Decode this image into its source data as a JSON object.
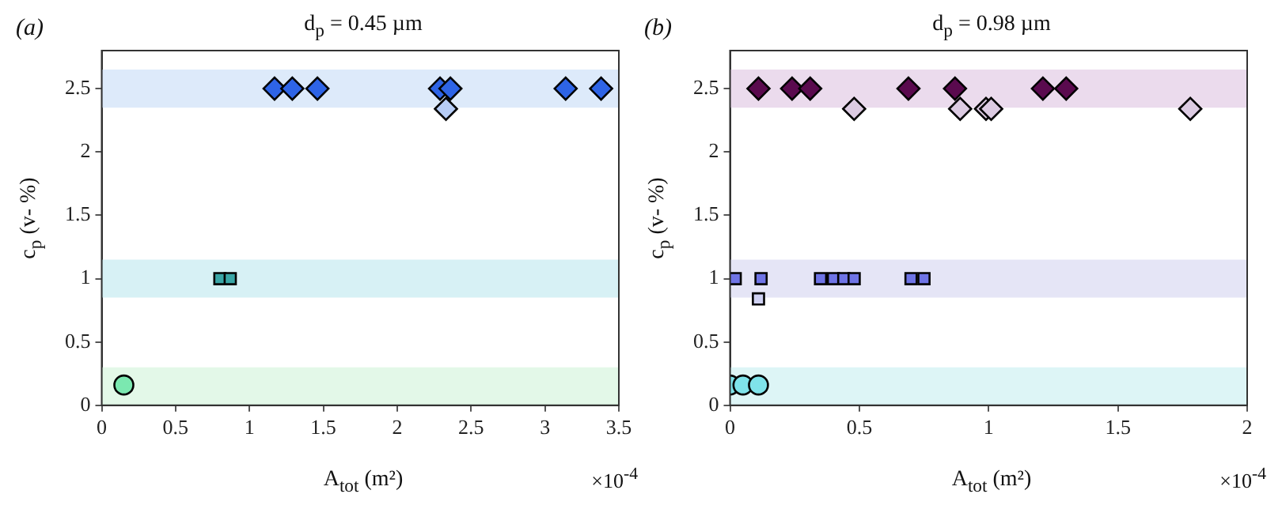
{
  "chart_data": [
    {
      "type": "scatter",
      "title": "d$_{p}$ = 0.45 µm",
      "xlabel": "A$_{tot}$ (m²)",
      "ylabel": "c$_{p}$ (v- %)",
      "annotations": [
        "(a)",
        "×10$^{-4}$"
      ],
      "xlim": [
        0,
        3.5
      ],
      "xticks": [
        0,
        0.5,
        1,
        1.5,
        2,
        2.5,
        3,
        3.5
      ],
      "ylim": [
        0,
        2.8
      ],
      "yticks": [
        0,
        0.5,
        1,
        1.5,
        2,
        2.5
      ],
      "grid": false,
      "legend": false,
      "bands": [
        {
          "axis": "y",
          "from": 2.35,
          "to": 2.65,
          "color": "#d4e5f9"
        },
        {
          "axis": "y",
          "from": 0.85,
          "to": 1.15,
          "color": "#cdeef2"
        },
        {
          "axis": "y",
          "from": 0,
          "to": 0.3,
          "color": "#dcf6e2"
        }
      ],
      "series": [
        {
          "color": "#2e64e6",
          "marker": "diamond",
          "x": [
            1.17,
            1.29,
            1.46,
            2.29,
            2.36,
            3.14,
            3.38
          ],
          "values": [
            2.5,
            2.5,
            2.5,
            2.5,
            2.5,
            2.5,
            2.5
          ]
        },
        {
          "color": "#b7cdf6",
          "marker": "diamond",
          "x": [
            2.33
          ],
          "values": [
            2.34
          ]
        },
        {
          "color": "#3aa6a6",
          "marker": "square",
          "x": [
            0.8,
            0.87
          ],
          "values": [
            1,
            1
          ]
        },
        {
          "color": "#7be8b0",
          "marker": "circle",
          "x": [
            0.15
          ],
          "values": [
            0.16
          ]
        }
      ]
    },
    {
      "type": "scatter",
      "title": "d$_{p}$ = 0.98 µm",
      "xlabel": "A$_{tot}$ (m²)",
      "ylabel": "c$_{p}$ (v- %)",
      "annotations": [
        "(b)",
        "×10$^{-4}$"
      ],
      "xlim": [
        0,
        2
      ],
      "xticks": [
        0,
        0.5,
        1,
        1.5,
        2
      ],
      "ylim": [
        0,
        2.8
      ],
      "yticks": [
        0,
        0.5,
        1,
        1.5,
        2,
        2.5
      ],
      "grid": false,
      "legend": false,
      "bands": [
        {
          "axis": "y",
          "from": 2.35,
          "to": 2.65,
          "color": "#e6d2e9"
        },
        {
          "axis": "y",
          "from": 0.85,
          "to": 1.15,
          "color": "#dfdff4"
        },
        {
          "axis": "y",
          "from": 0,
          "to": 0.3,
          "color": "#d4f3f4"
        }
      ],
      "series": [
        {
          "color": "#5a0a4e",
          "marker": "diamond",
          "x": [
            0.11,
            0.24,
            0.31,
            0.69,
            0.87,
            1.21,
            1.3
          ],
          "values": [
            2.5,
            2.5,
            2.5,
            2.5,
            2.5,
            2.5,
            2.5
          ]
        },
        {
          "color": "#dccbe2",
          "marker": "diamond",
          "x": [
            0.48,
            0.89,
            0.99,
            1.01,
            1.78
          ],
          "values": [
            2.34,
            2.34,
            2.34,
            2.34,
            2.34
          ]
        },
        {
          "color": "#6f74e6",
          "marker": "square",
          "x": [
            0.02,
            0.12,
            0.35,
            0.4,
            0.44,
            0.48,
            0.7,
            0.75
          ],
          "values": [
            1,
            1,
            1,
            1,
            1,
            1,
            1,
            1
          ]
        },
        {
          "color": "#cfd1f2",
          "marker": "square",
          "x": [
            0.11
          ],
          "values": [
            0.84
          ]
        },
        {
          "color": "#7fe3ea",
          "marker": "circle",
          "x": [
            0,
            0.05,
            0.11
          ],
          "values": [
            0.16,
            0.16,
            0.16
          ]
        }
      ]
    }
  ]
}
